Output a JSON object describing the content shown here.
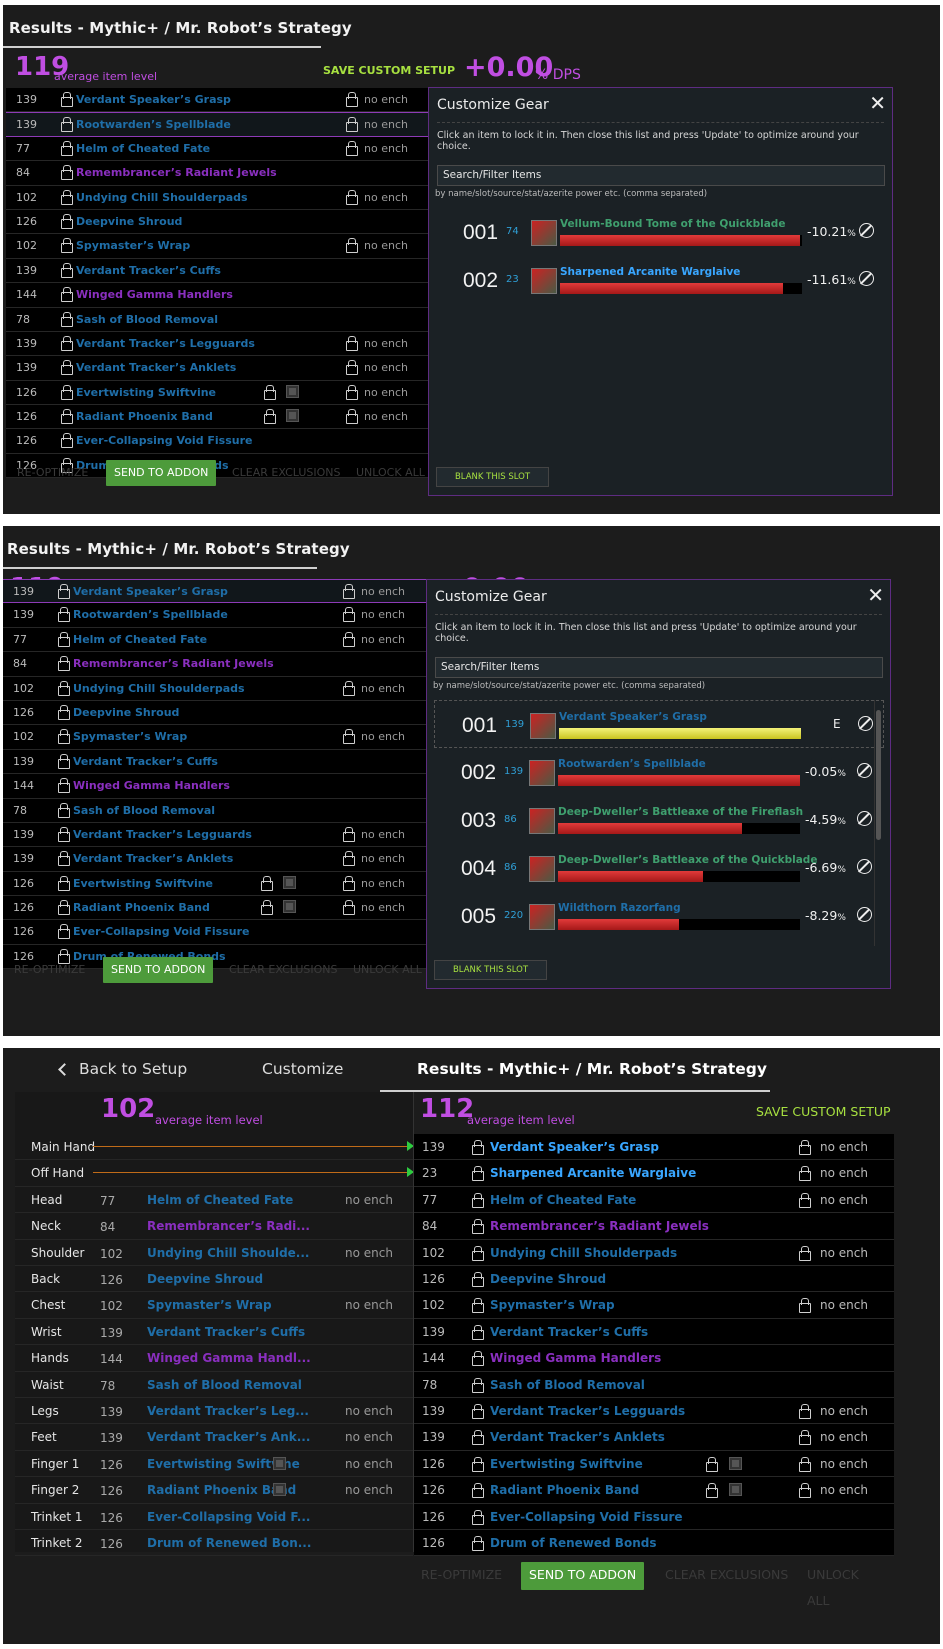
{
  "title": "Results - Mythic+ / Mr. Robot’s Strategy",
  "avg_ilvl": "119",
  "avg_ilvl_label": "average item level",
  "save_custom_setup": "SAVE CUSTOM SETUP",
  "dps_delta": "+0.00",
  "dps_suffix": "% DPS",
  "gear": [
    {
      "ilvl": "139",
      "name": "Verdant Speaker’s Grasp",
      "quality": "blue",
      "enchant": "no ench"
    },
    {
      "ilvl": "139",
      "name": "Rootwarden’s Spellblade",
      "quality": "blue",
      "enchant": "no ench"
    },
    {
      "ilvl": "77",
      "name": "Helm of Cheated Fate",
      "quality": "blue",
      "enchant": "no ench"
    },
    {
      "ilvl": "84",
      "name": "Remembrancer’s Radiant Jewels",
      "quality": "purple",
      "enchant": ""
    },
    {
      "ilvl": "102",
      "name": "Undying Chill Shoulderpads",
      "quality": "blue",
      "enchant": "no ench"
    },
    {
      "ilvl": "126",
      "name": "Deepvine Shroud",
      "quality": "blue",
      "enchant": ""
    },
    {
      "ilvl": "102",
      "name": "Spymaster’s Wrap",
      "quality": "blue",
      "enchant": "no ench"
    },
    {
      "ilvl": "139",
      "name": "Verdant Tracker’s Cuffs",
      "quality": "blue",
      "enchant": ""
    },
    {
      "ilvl": "144",
      "name": "Winged Gamma Handlers",
      "quality": "purple",
      "enchant": ""
    },
    {
      "ilvl": "78",
      "name": "Sash of Blood Removal",
      "quality": "blue",
      "enchant": ""
    },
    {
      "ilvl": "139",
      "name": "Verdant Tracker’s Legguards",
      "quality": "blue",
      "enchant": "no ench"
    },
    {
      "ilvl": "139",
      "name": "Verdant Tracker’s Anklets",
      "quality": "blue",
      "enchant": "no ench"
    },
    {
      "ilvl": "126",
      "name": "Evertwisting Swiftvine",
      "quality": "blue",
      "enchant": "no ench",
      "gem": true
    },
    {
      "ilvl": "126",
      "name": "Radiant Phoenix Band",
      "quality": "blue",
      "enchant": "no ench",
      "gem": true
    },
    {
      "ilvl": "126",
      "name": "Ever-Collapsing Void Fissure",
      "quality": "blue",
      "enchant": ""
    },
    {
      "ilvl": "126",
      "name": "Drum of Renewed Bonds",
      "quality": "blue",
      "enchant": ""
    }
  ],
  "footer": {
    "reoptimize": "RE-OPTIMIZE",
    "send": "SEND TO ADDON",
    "clear": "CLEAR EXCLUSIONS",
    "unlock": "UNLOCK ALL"
  },
  "customize": {
    "title": "Customize Gear",
    "close": "✕",
    "hint": "Click an item to lock it in. Then close this list and press 'Update' to optimize around your choice.",
    "search_label": "Search/Filter Items",
    "search_sub": "by name/slot/source/stat/azerite power etc. (comma separated)",
    "blank": "BLANK THIS SLOT",
    "options_a": [
      {
        "idx": "001",
        "ilvl": "74",
        "name": "Vellum-Bound Tome of the Quickblade",
        "color": "green",
        "pct": "-10.21",
        "fill": 0.99
      },
      {
        "idx": "002",
        "ilvl": "23",
        "name": "Sharpened Arcanite Warglaive",
        "color": "bright",
        "pct": "-11.61",
        "fill": 0.92
      }
    ],
    "options_b": [
      {
        "idx": "001",
        "ilvl": "139",
        "name": "Verdant Speaker’s Grasp",
        "color": "blue",
        "pct": "",
        "equipped": "E",
        "fill": 1.0,
        "bar": "yellow"
      },
      {
        "idx": "002",
        "ilvl": "139",
        "name": "Rootwarden’s Spellblade",
        "color": "blue",
        "pct": "-0.05",
        "fill": 1.0
      },
      {
        "idx": "003",
        "ilvl": "86",
        "name": "Deep-Dweller’s Battleaxe of the Fireflash",
        "color": "green",
        "pct": "-4.59",
        "fill": 0.76
      },
      {
        "idx": "004",
        "ilvl": "86",
        "name": "Deep-Dweller’s Battleaxe of the Quickblade",
        "color": "green",
        "pct": "-6.69",
        "fill": 0.6
      },
      {
        "idx": "005",
        "ilvl": "220",
        "name": "Wildthorn Razorfang",
        "color": "blue",
        "pct": "-8.29",
        "fill": 0.5
      }
    ],
    "pct_suffix": "%"
  },
  "panel3": {
    "tabs": {
      "back": "Back to Setup",
      "customize": "Customize",
      "results": "Results - Mythic+ / Mr. Robot’s Strategy"
    },
    "left_ilvl": "102",
    "right_ilvl": "112",
    "slots": [
      "Main Hand",
      "Off Hand",
      "Head",
      "Neck",
      "Shoulder",
      "Back",
      "Chest",
      "Wrist",
      "Hands",
      "Waist",
      "Legs",
      "Feet",
      "Finger 1",
      "Finger 2",
      "Trinket 1",
      "Trinket 2"
    ],
    "left_rows": [
      null,
      null,
      {
        "ilvl": "77",
        "name": "Helm of Cheated Fate",
        "quality": "blue",
        "enchant": "no ench"
      },
      {
        "ilvl": "84",
        "name": "Remembrancer’s Radi...",
        "quality": "purple",
        "enchant": ""
      },
      {
        "ilvl": "102",
        "name": "Undying Chill Shoulde...",
        "quality": "blue",
        "enchant": "no ench"
      },
      {
        "ilvl": "126",
        "name": "Deepvine Shroud",
        "quality": "blue",
        "enchant": ""
      },
      {
        "ilvl": "102",
        "name": "Spymaster’s Wrap",
        "quality": "blue",
        "enchant": "no ench"
      },
      {
        "ilvl": "139",
        "name": "Verdant Tracker’s Cuffs",
        "quality": "blue",
        "enchant": ""
      },
      {
        "ilvl": "144",
        "name": "Winged Gamma Handl...",
        "quality": "purple",
        "enchant": ""
      },
      {
        "ilvl": "78",
        "name": "Sash of Blood Removal",
        "quality": "blue",
        "enchant": ""
      },
      {
        "ilvl": "139",
        "name": "Verdant Tracker’s Leg...",
        "quality": "blue",
        "enchant": "no ench"
      },
      {
        "ilvl": "139",
        "name": "Verdant Tracker’s Ank...",
        "quality": "blue",
        "enchant": "no ench"
      },
      {
        "ilvl": "126",
        "name": "Evertwisting Swiftvine",
        "quality": "blue",
        "enchant": "no ench",
        "gem": true
      },
      {
        "ilvl": "126",
        "name": "Radiant Phoenix Band",
        "quality": "blue",
        "enchant": "no ench",
        "gem": true
      },
      {
        "ilvl": "126",
        "name": "Ever-Collapsing Void F...",
        "quality": "blue",
        "enchant": ""
      },
      {
        "ilvl": "126",
        "name": "Drum of Renewed Bon...",
        "quality": "blue",
        "enchant": ""
      }
    ],
    "right_rows": [
      {
        "ilvl": "139",
        "name": "Verdant Speaker’s Grasp",
        "quality": "bright",
        "enchant": "no ench"
      },
      {
        "ilvl": "23",
        "name": "Sharpened Arcanite Warglaive",
        "quality": "bright",
        "enchant": "no ench"
      },
      {
        "ilvl": "77",
        "name": "Helm of Cheated Fate",
        "quality": "blue",
        "enchant": "no ench"
      },
      {
        "ilvl": "84",
        "name": "Remembrancer’s Radiant Jewels",
        "quality": "purple",
        "enchant": ""
      },
      {
        "ilvl": "102",
        "name": "Undying Chill Shoulderpads",
        "quality": "blue",
        "enchant": "no ench"
      },
      {
        "ilvl": "126",
        "name": "Deepvine Shroud",
        "quality": "blue",
        "enchant": ""
      },
      {
        "ilvl": "102",
        "name": "Spymaster’s Wrap",
        "quality": "blue",
        "enchant": "no ench"
      },
      {
        "ilvl": "139",
        "name": "Verdant Tracker’s Cuffs",
        "quality": "blue",
        "enchant": ""
      },
      {
        "ilvl": "144",
        "name": "Winged Gamma Handlers",
        "quality": "purple",
        "enchant": ""
      },
      {
        "ilvl": "78",
        "name": "Sash of Blood Removal",
        "quality": "blue",
        "enchant": ""
      },
      {
        "ilvl": "139",
        "name": "Verdant Tracker’s Legguards",
        "quality": "blue",
        "enchant": "no ench"
      },
      {
        "ilvl": "139",
        "name": "Verdant Tracker’s Anklets",
        "quality": "blue",
        "enchant": "no ench"
      },
      {
        "ilvl": "126",
        "name": "Evertwisting Swiftvine",
        "quality": "blue",
        "enchant": "no ench",
        "gem": true
      },
      {
        "ilvl": "126",
        "name": "Radiant Phoenix Band",
        "quality": "blue",
        "enchant": "no ench",
        "gem": true
      },
      {
        "ilvl": "126",
        "name": "Ever-Collapsing Void Fissure",
        "quality": "blue",
        "enchant": ""
      },
      {
        "ilvl": "126",
        "name": "Drum of Renewed Bonds",
        "quality": "blue",
        "enchant": ""
      }
    ]
  }
}
